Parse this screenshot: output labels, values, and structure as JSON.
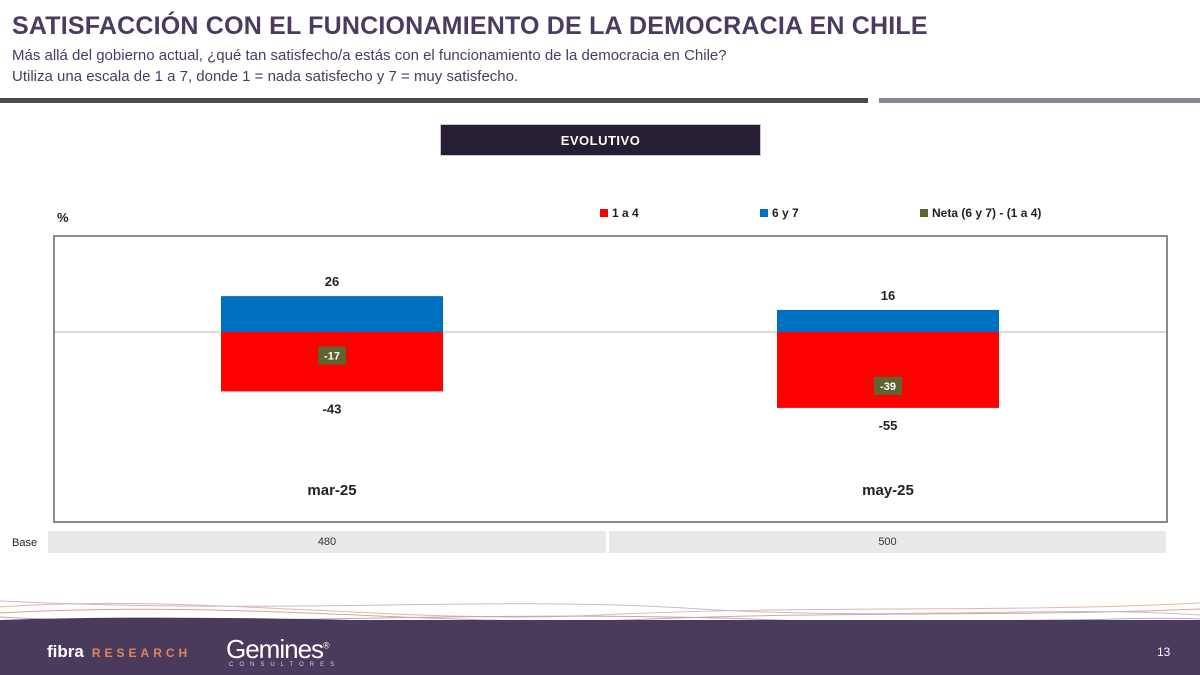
{
  "header": {
    "title": "SATISFACCIÓN CON EL FUNCIONAMIENTO DE LA DEMOCRACIA EN CHILE",
    "subtitle_line1": "Más allá del gobierno actual, ¿qué tan satisfecho/a estás con el funcionamiento de la democracia en Chile?",
    "subtitle_line2": "Utiliza una escala de 1 a 7, donde 1 = nada satisfecho y 7 = muy satisfecho."
  },
  "tab": {
    "label": "EVOLUTIVO"
  },
  "chart_data": {
    "type": "bar",
    "unit_label": "%",
    "categories": [
      "mar-25",
      "may-25"
    ],
    "series": [
      {
        "name": "1 a 4",
        "color": "#ff0000",
        "values": [
          -43,
          -55
        ]
      },
      {
        "name": "6 y 7",
        "color": "#0070c0",
        "values": [
          26,
          16
        ]
      },
      {
        "name": "Neta (6 y 7) - (1 a 4)",
        "color": "#5e6431",
        "values": [
          -17,
          -39
        ]
      }
    ],
    "legend_position": "top-right",
    "grid": false
  },
  "base": {
    "label": "Base",
    "values": [
      "480",
      "500"
    ]
  },
  "footer": {
    "brand1": "fibra",
    "brand1_sub": "RESEARCH",
    "brand2": "Gemines",
    "brand2_mark": "®",
    "brand2_sub": "CONSULTORES",
    "page_number": "13"
  }
}
